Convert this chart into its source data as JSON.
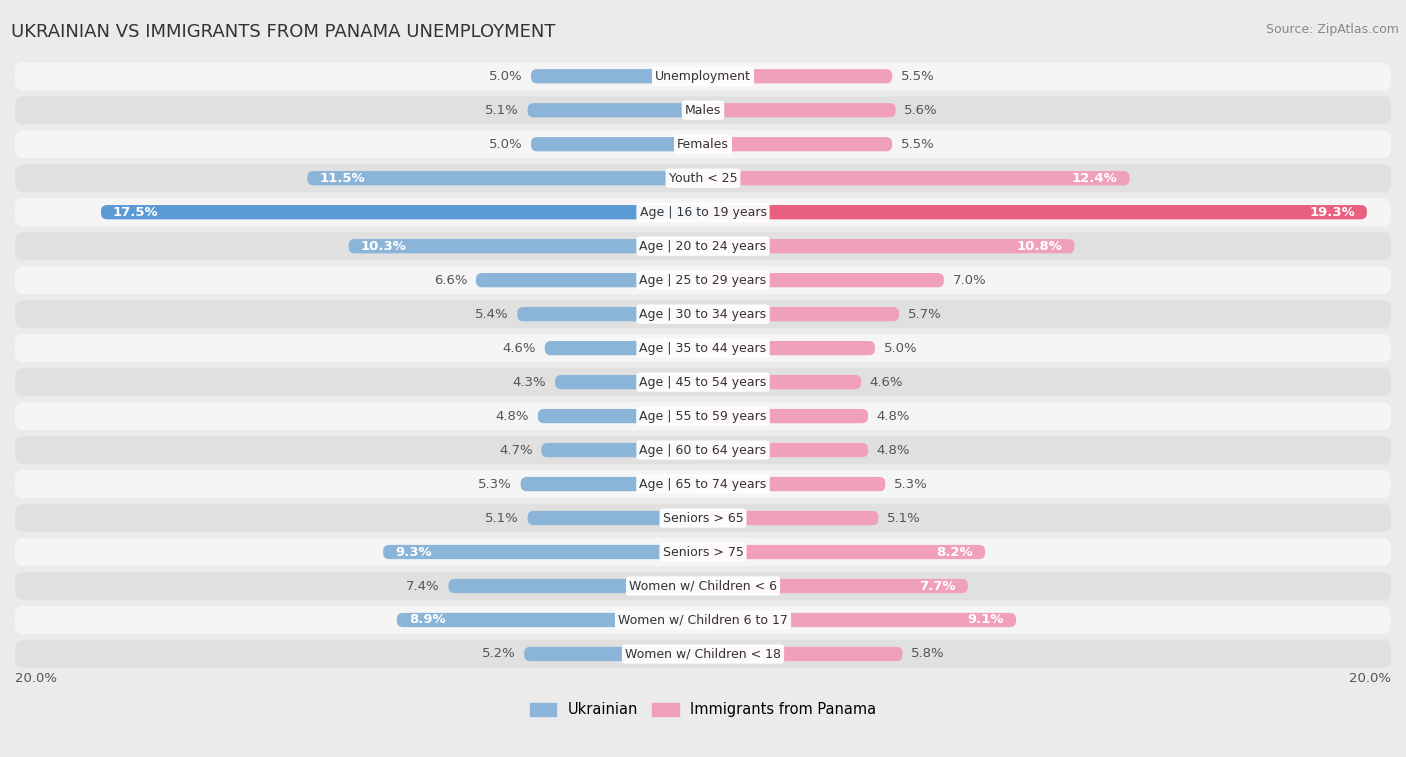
{
  "title": "UKRAINIAN VS IMMIGRANTS FROM PANAMA UNEMPLOYMENT",
  "source": "Source: ZipAtlas.com",
  "categories": [
    "Unemployment",
    "Males",
    "Females",
    "Youth < 25",
    "Age | 16 to 19 years",
    "Age | 20 to 24 years",
    "Age | 25 to 29 years",
    "Age | 30 to 34 years",
    "Age | 35 to 44 years",
    "Age | 45 to 54 years",
    "Age | 55 to 59 years",
    "Age | 60 to 64 years",
    "Age | 65 to 74 years",
    "Seniors > 65",
    "Seniors > 75",
    "Women w/ Children < 6",
    "Women w/ Children 6 to 17",
    "Women w/ Children < 18"
  ],
  "ukrainian": [
    5.0,
    5.1,
    5.0,
    11.5,
    17.5,
    10.3,
    6.6,
    5.4,
    4.6,
    4.3,
    4.8,
    4.7,
    5.3,
    5.1,
    9.3,
    7.4,
    8.9,
    5.2
  ],
  "panama": [
    5.5,
    5.6,
    5.5,
    12.4,
    19.3,
    10.8,
    7.0,
    5.7,
    5.0,
    4.6,
    4.8,
    4.8,
    5.3,
    5.1,
    8.2,
    7.7,
    9.1,
    5.8
  ],
  "ukrainian_color": "#8ab4d8",
  "panama_color": "#f0a0b8",
  "highlight_ukrainian_color": "#5b9bd5",
  "highlight_panama_color": "#e8607e",
  "background_color": "#ebebeb",
  "row_light": "#f5f5f5",
  "row_dark": "#e0e0e0",
  "max_val": 20.0,
  "legend_ukrainian": "Ukrainian",
  "legend_panama": "Immigrants from Panama",
  "title_fontsize": 13,
  "source_fontsize": 9,
  "label_fontsize": 9.5,
  "category_fontsize": 9,
  "inside_label_threshold": 7.5
}
